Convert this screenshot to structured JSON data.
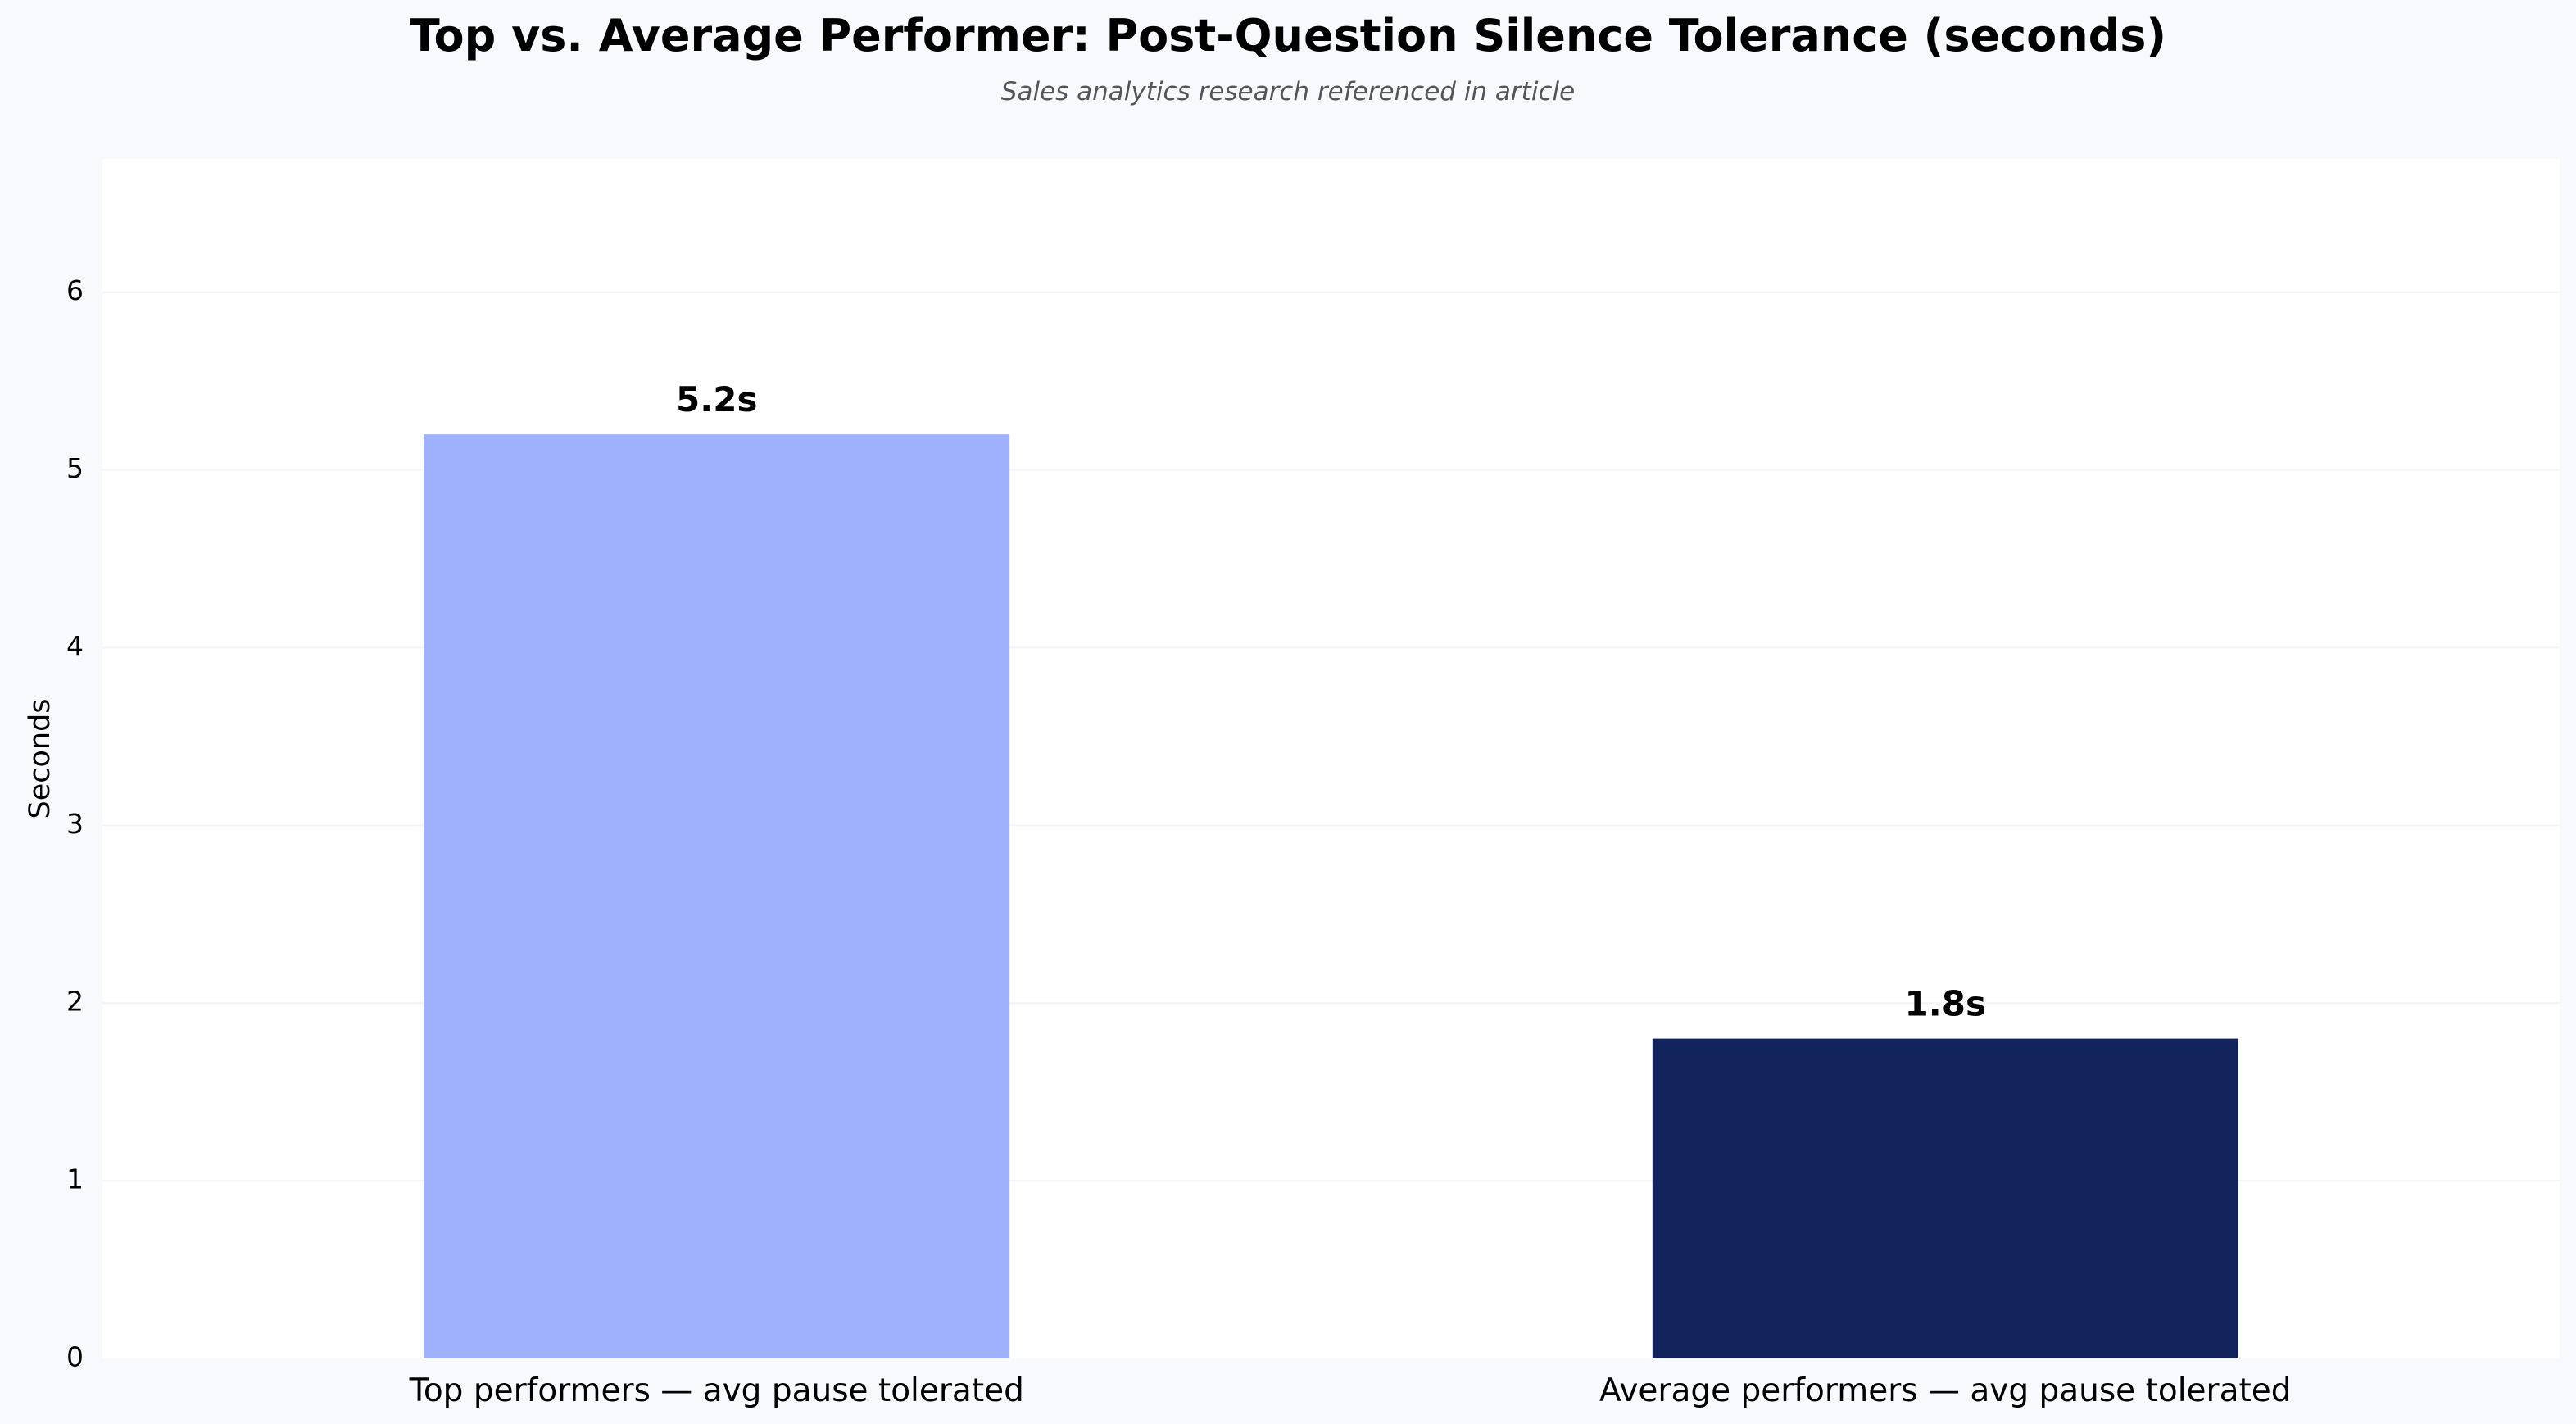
{
  "chart_data": {
    "type": "bar",
    "title": "Top vs. Average Performer: Post-Question Silence Tolerance (seconds)",
    "subtitle": "Sales analytics research referenced in article",
    "categories": [
      "Top performers — avg pause tolerated",
      "Average performers — avg pause tolerated"
    ],
    "values": [
      5.2,
      1.8
    ],
    "value_labels": [
      "5.2s",
      "1.8s"
    ],
    "colors": [
      "#9fb0fd",
      "#13235b"
    ],
    "xlabel": "",
    "ylabel": "Seconds",
    "ylim": [
      0,
      6.75
    ],
    "yticks": [
      0,
      1,
      2,
      3,
      4,
      5,
      6
    ],
    "grid": true,
    "legend": "none"
  },
  "style": {
    "page_background": "#f7f9fc",
    "plot_background": "#ffffff",
    "grid_color": "#f3f4f7"
  }
}
